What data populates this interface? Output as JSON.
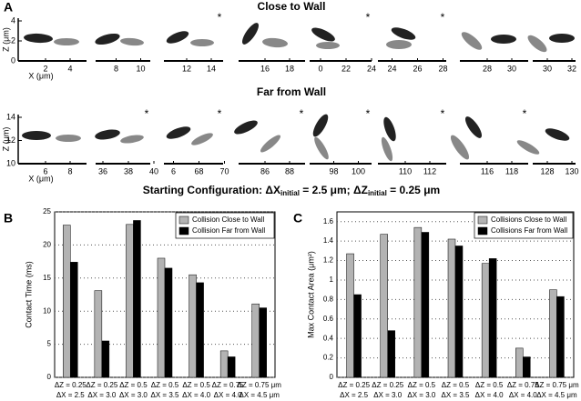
{
  "panel_labels": [
    "A",
    "B",
    "C"
  ],
  "panel_a": {
    "rows": [
      {
        "title": "Close to Wall",
        "y_label": "Z (μm)",
        "x_label": "X (μm)",
        "yticks": [
          0,
          2,
          4
        ],
        "frames": [
          {
            "xticks": [
              2,
              4
            ]
          },
          {
            "xticks": [
              8,
              10
            ]
          },
          {
            "xticks": [
              12,
              14
            ],
            "mark": "*"
          },
          {
            "xticks": [
              16,
              18
            ]
          },
          {
            "xticks": [
              0,
              22,
              24
            ],
            "mark": "*"
          },
          {
            "xticks": [
              24,
              26,
              28
            ],
            "mark": "*"
          },
          {
            "xticks": [
              28,
              30
            ]
          },
          {
            "xticks": [
              30,
              32
            ]
          }
        ]
      },
      {
        "title": "Far from Wall",
        "y_label": "Z (μm)",
        "x_label": "X (μm)",
        "yticks": [
          10,
          12,
          14
        ],
        "frames": [
          {
            "xticks": [
              6,
              8
            ]
          },
          {
            "xticks": [
              36,
              38,
              40
            ],
            "mark": "*"
          },
          {
            "xticks": [
              6,
              68,
              70
            ],
            "mark": "*"
          },
          {
            "xticks": [
              86,
              88
            ],
            "mark": "*"
          },
          {
            "xticks": [
              98,
              100
            ],
            "mark": "*"
          },
          {
            "xticks": [
              110,
              112
            ],
            "mark": "*"
          },
          {
            "xticks": [
              116,
              118
            ],
            "mark": "*"
          },
          {
            "xticks": [
              128,
              130
            ]
          }
        ]
      }
    ],
    "caption": [
      "Starting Configuration: ΔX",
      "initial",
      " = 2.5 μm; ΔZ",
      "initial",
      " = 0.25 μm"
    ]
  },
  "chart_data": [
    {
      "type": "bar",
      "y_label": "Contact Time (ms)",
      "categories": [
        [
          "ΔZ = 0.25",
          "ΔX = 2.5"
        ],
        [
          "ΔZ = 0.25",
          "ΔX = 3.0"
        ],
        [
          "ΔZ = 0.5",
          "ΔX = 3.0"
        ],
        [
          "ΔZ = 0.5",
          "ΔX = 3.5"
        ],
        [
          "ΔZ = 0.5",
          "ΔX = 4.0"
        ],
        [
          "ΔZ = 0.75",
          "ΔX = 4.0"
        ],
        [
          "ΔZ = 0.75 μm",
          "ΔX = 4.5 μm"
        ]
      ],
      "series": [
        {
          "name": "Collision Close to Wall",
          "color": "#b3b3b3",
          "values": [
            23,
            13.1,
            23.1,
            18,
            15.5,
            4,
            11.1
          ]
        },
        {
          "name": "Collision Far from Wall",
          "color": "#000000",
          "values": [
            17.4,
            5.5,
            23.7,
            16.5,
            14.3,
            3.1,
            10.5
          ]
        }
      ],
      "ylim": [
        0,
        25
      ],
      "yticks": [
        0,
        5,
        10,
        15,
        20,
        25
      ],
      "grid": true,
      "legend": "upper right"
    },
    {
      "type": "bar",
      "y_label": "Max Contact Area (μm²)",
      "categories": [
        [
          "ΔZ = 0.25",
          "ΔX = 2.5"
        ],
        [
          "ΔZ = 0.25",
          "ΔX = 3.0"
        ],
        [
          "ΔZ = 0.5",
          "ΔX = 3.0"
        ],
        [
          "ΔZ = 0.5",
          "ΔX = 3.5"
        ],
        [
          "ΔZ = 0.5",
          "ΔX = 4.0"
        ],
        [
          "ΔZ = 0.75",
          "ΔX = 4.0"
        ],
        [
          "ΔZ = 0.75 μm",
          "ΔX = 4.5 μm"
        ]
      ],
      "series": [
        {
          "name": "Collisions Close to Wall",
          "color": "#b3b3b3",
          "values": [
            1.27,
            1.47,
            1.54,
            1.42,
            1.17,
            0.3,
            0.9
          ]
        },
        {
          "name": "Collisions Far from Wall",
          "color": "#000000",
          "values": [
            0.85,
            0.48,
            1.49,
            1.35,
            1.22,
            0.21,
            0.83
          ]
        }
      ],
      "ylim": [
        0,
        1.7
      ],
      "yticks": [
        0,
        0.2,
        0.4,
        0.6,
        0.8,
        1,
        1.2,
        1.4,
        1.6
      ],
      "grid": true,
      "legend": "upper right"
    }
  ]
}
